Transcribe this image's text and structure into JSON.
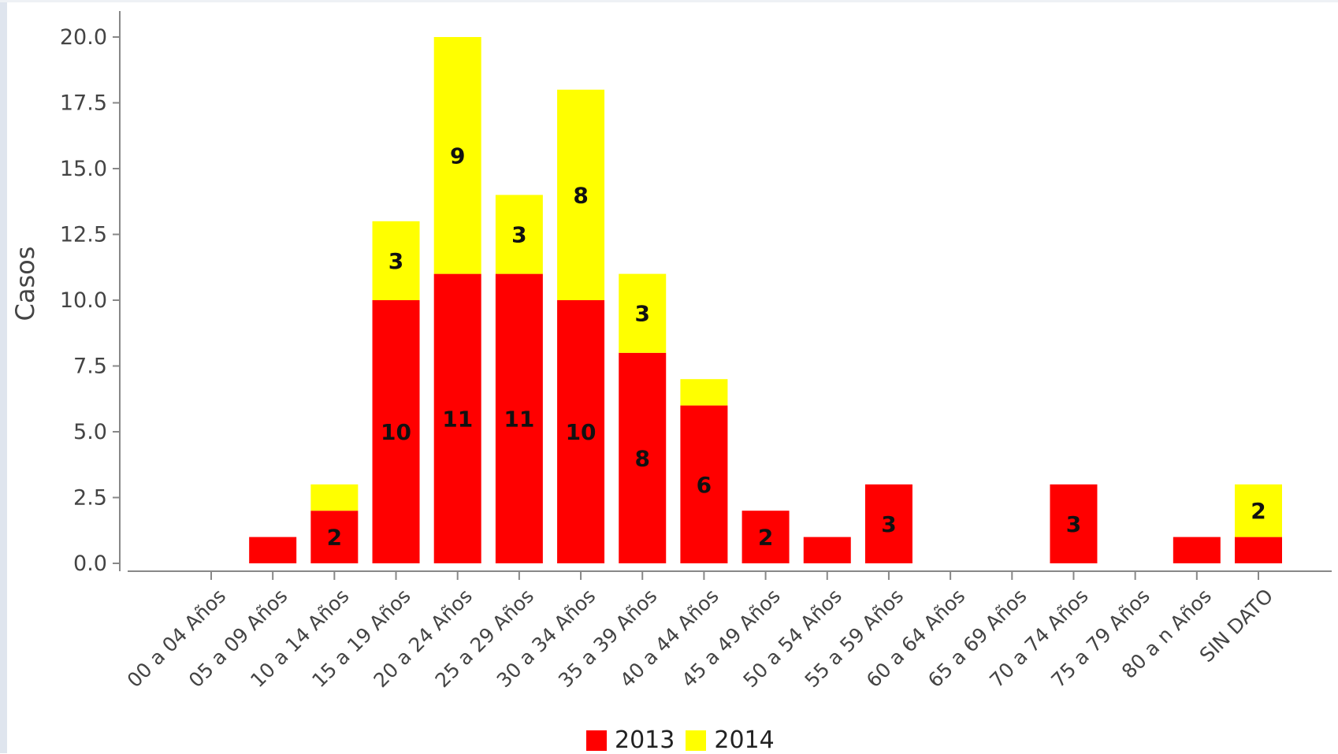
{
  "chart_data": {
    "type": "bar",
    "stacked": true,
    "ylabel": "Casos",
    "xlabel": "",
    "ylim": [
      0,
      21.5
    ],
    "yticks": [
      "0.0",
      "2.5",
      "5.0",
      "7.5",
      "10.0",
      "12.5",
      "15.0",
      "17.5",
      "20.0"
    ],
    "categories": [
      "00 a 04 Años",
      "05 a 09 Años",
      "10 a 14 Años",
      "15 a 19 Años",
      "20 a 24 Años",
      "25 a 29 Años",
      "30 a 34 Años",
      "35 a 39 Años",
      "40 a 44 Años",
      "45 a 49 Años",
      "50 a 54 Años",
      "55 a 59 Años",
      "60 a 64 Años",
      "65 a 69 Años",
      "70 a 74 Años",
      "75 a 79 Años",
      "80 a n Años",
      "SIN DATO"
    ],
    "series": [
      {
        "name": "2013",
        "color": "#ff0000",
        "values": [
          0,
          1,
          2,
          10,
          11,
          11,
          10,
          8,
          6,
          2,
          1,
          3,
          0,
          0,
          3,
          0,
          1,
          1
        ],
        "labels": [
          "",
          "",
          "2",
          "10",
          "11",
          "11",
          "10",
          "8",
          "6",
          "2",
          "",
          "3",
          "",
          "",
          "3",
          "",
          "",
          ""
        ]
      },
      {
        "name": "2014",
        "color": "#ffff00",
        "values": [
          0,
          0,
          1,
          3,
          9,
          3,
          8,
          3,
          1,
          0,
          0,
          0,
          0,
          0,
          0,
          0,
          0,
          2
        ],
        "labels": [
          "",
          "",
          "",
          "3",
          "9",
          "3",
          "8",
          "3",
          "",
          "",
          "",
          "",
          "",
          "",
          "",
          "",
          "",
          "2"
        ]
      }
    ],
    "grid": false,
    "legend_position": "bottom-center"
  }
}
